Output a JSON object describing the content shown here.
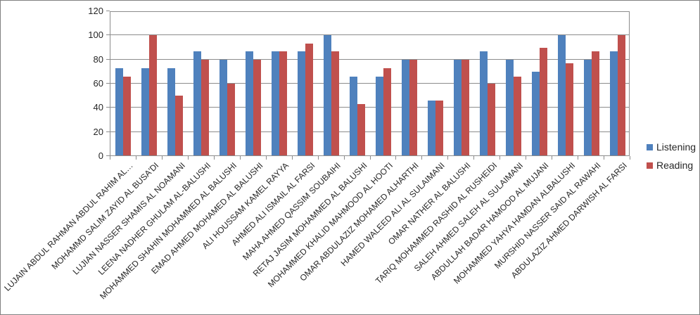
{
  "chart_data": {
    "type": "bar",
    "title": "",
    "xlabel": "",
    "ylabel": "",
    "ylim": [
      0,
      120
    ],
    "yticks": [
      0,
      20,
      40,
      60,
      80,
      100,
      120
    ],
    "grid": "horizontal",
    "legend_position": "right",
    "categories": [
      "LUJAIN ABDUL RAHMAN ABDUL RAHIM AL…",
      "MOHAMMD SALIM ZAYID AL BUSA'DI",
      "LUJIAN NASSER SHAMIS AL NOAMANI",
      "LEENA NADHER GHULAM AL-BALUSHI",
      "MOHAMMED SHAHIN MOHAMMED AL BALUSHI",
      "EMAD AHMED MOHAMED AL BALUSHI",
      "ALI HOUSSAM KAMEL RAYYA",
      "AHMED ALI ISMAIL AL FARSI",
      "MAHA AHMED QASSIM SOUBAIHI",
      "RETAJ JASIM MOHAMMED AL BALUSHI",
      "MOHAMMED KHALID MAHMOOD AL HOOTI",
      "OMAR ABDULAZIZ MOHAMED ALHARTHI",
      "HAMED WALEED ALI AL SULAIMANI",
      "OMAR NATHER AL BALUSHI",
      "TARIQ MOHAMMED RASHID AL RUSHEIDI",
      "SALEH AHMED SALEH AL SULAIMANI",
      "ABDULLAH BADAR HAMOOD AL MUJANI",
      "MOHAMMED YAHYA HAMDAN ALBALUSHI",
      "MURSHID NASSER SAID AL RAWAHI",
      "ABDULAZIZ AHMED DARWISH AL FARSI"
    ],
    "series": [
      {
        "name": "Listening",
        "color": "#4F81BD",
        "values": [
          73,
          73,
          73,
          87,
          80,
          87,
          87,
          87,
          100,
          66,
          66,
          80,
          46,
          80,
          87,
          80,
          70,
          100,
          80,
          87
        ]
      },
      {
        "name": "Reading",
        "color": "#C0504D",
        "values": [
          66,
          100,
          50,
          80,
          60,
          80,
          87,
          93,
          87,
          43,
          73,
          80,
          46,
          80,
          60,
          66,
          90,
          77,
          87,
          100
        ]
      }
    ]
  },
  "legend": {
    "items": [
      {
        "label": "Listening",
        "color": "#4F81BD"
      },
      {
        "label": "Reading",
        "color": "#C0504D"
      }
    ]
  },
  "colors": {
    "background": "#FFFFFF",
    "border": "#808080",
    "gridline": "#8C8C8C",
    "axis_text": "#262626"
  }
}
